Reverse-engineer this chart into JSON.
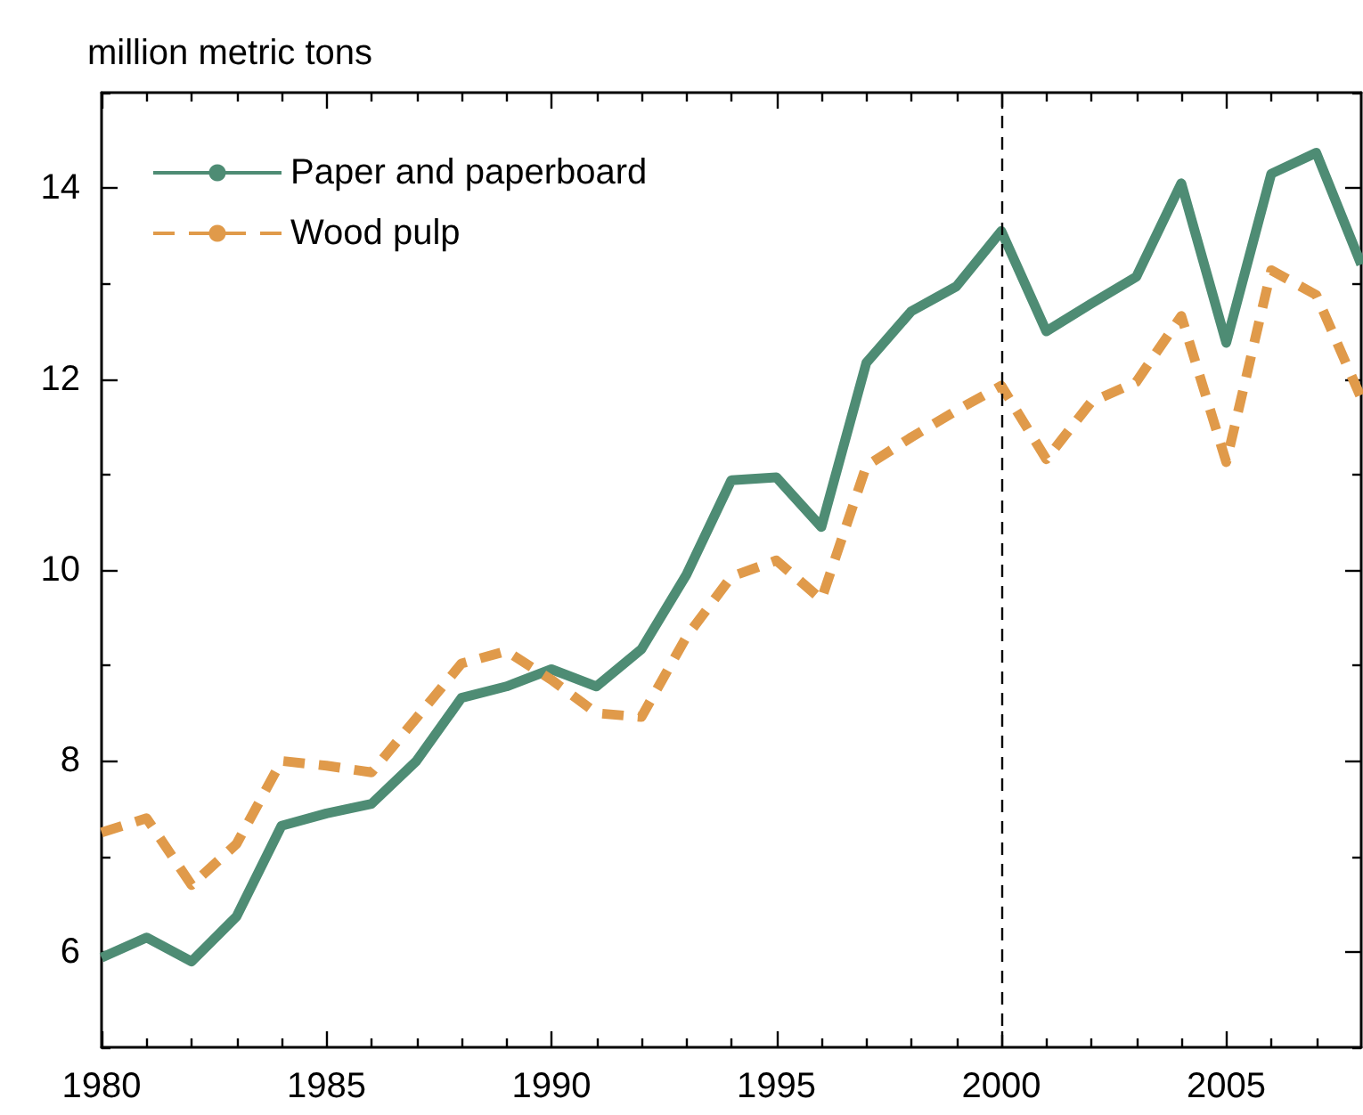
{
  "chart_data": {
    "type": "line",
    "ylabel": "million metric tons",
    "x": [
      1980,
      1981,
      1982,
      1983,
      1984,
      1985,
      1986,
      1987,
      1988,
      1989,
      1990,
      1991,
      1992,
      1993,
      1994,
      1995,
      1996,
      1997,
      1998,
      1999,
      2000,
      2001,
      2002,
      2003,
      2004,
      2005,
      2006,
      2007,
      2008
    ],
    "series": [
      {
        "name": "Paper and paperboard",
        "color": "#4e8c74",
        "line_style": "solid",
        "values": [
          5.94,
          6.15,
          5.9,
          6.37,
          7.32,
          7.45,
          7.55,
          8.0,
          8.66,
          8.78,
          8.96,
          8.78,
          9.17,
          9.95,
          10.94,
          10.97,
          10.45,
          12.17,
          12.71,
          12.97,
          13.55,
          12.5,
          12.79,
          13.07,
          14.05,
          12.38,
          14.15,
          14.37,
          13.2
        ]
      },
      {
        "name": "Wood pulp",
        "color": "#e09a4a",
        "line_style": "dashed",
        "values": [
          7.25,
          7.4,
          6.7,
          7.13,
          8.0,
          7.95,
          7.88,
          8.45,
          9.02,
          9.15,
          8.85,
          8.5,
          8.46,
          9.3,
          9.93,
          10.1,
          9.69,
          11.09,
          11.39,
          11.67,
          11.93,
          11.16,
          11.76,
          11.97,
          12.66,
          11.13,
          13.14,
          12.88,
          11.8
        ]
      }
    ],
    "xlim": [
      1980,
      2008
    ],
    "xticks": [
      1980,
      {
        "value": 1981,
        "label": null
      },
      {
        "value": 1982,
        "label": null
      },
      {
        "value": 1983,
        "label": null
      },
      {
        "value": 1984,
        "label": null
      },
      1985,
      {
        "value": 1986,
        "label": null
      },
      {
        "value": 1987,
        "label": null
      },
      {
        "value": 1988,
        "label": null
      },
      {
        "value": 1989,
        "label": null
      },
      1990,
      {
        "value": 1991,
        "label": null
      },
      {
        "value": 1992,
        "label": null
      },
      {
        "value": 1993,
        "label": null
      },
      {
        "value": 1994,
        "label": null
      },
      1995,
      {
        "value": 1996,
        "label": null
      },
      {
        "value": 1997,
        "label": null
      },
      {
        "value": 1998,
        "label": null
      },
      {
        "value": 1999,
        "label": null
      },
      2000,
      {
        "value": 2001,
        "label": null
      },
      {
        "value": 2002,
        "label": null
      },
      {
        "value": 2003,
        "label": null
      },
      {
        "value": 2004,
        "label": null
      },
      2005,
      {
        "value": 2006,
        "label": null
      },
      {
        "value": 2007,
        "label": null
      }
    ],
    "ylim": [
      5,
      15
    ],
    "yticks": [
      {
        "value": 5,
        "label": null
      },
      6,
      {
        "value": 7,
        "label": null
      },
      8,
      {
        "value": 9,
        "label": null
      },
      10,
      {
        "value": 11,
        "label": null
      },
      12,
      {
        "value": 13,
        "label": null
      },
      14,
      {
        "value": 15,
        "label": null
      }
    ],
    "ref_lines": [
      {
        "axis": "x",
        "value": 2000,
        "label": null,
        "color": "#000000",
        "line_style": "dashed"
      }
    ],
    "legend": "top left",
    "grid": false,
    "marker": "none"
  }
}
